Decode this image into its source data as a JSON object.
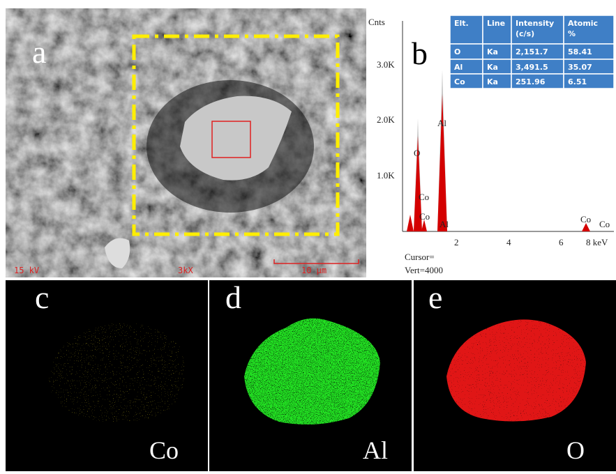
{
  "panel_a": {
    "label": "a",
    "voltage": "15 kV",
    "magnification": "3kX",
    "scale_bar": "10 μm"
  },
  "panel_b": {
    "label": "b",
    "y_axis_title": "Cnts",
    "yticks": [
      "3.0K",
      "2.0K",
      "1.0K"
    ],
    "xticks": [
      "2",
      "4",
      "6",
      "8 keV"
    ],
    "peak_labels": [
      "O",
      "Co",
      "Co",
      "Al",
      "Al",
      "Co",
      "Co"
    ],
    "cursor": "Cursor=",
    "vert": "Vert=4000",
    "table": {
      "header": [
        "Elt.",
        "Line",
        "Intensity (c/s)",
        "Atomic %"
      ],
      "rows": [
        [
          "O",
          "Ka",
          "2,151.7",
          "58.41"
        ],
        [
          "Al",
          "Ka",
          "3,491.5",
          "35.07"
        ],
        [
          "Co",
          "Ka",
          "251.96",
          "6.51"
        ]
      ]
    }
  },
  "panel_c": {
    "label": "c",
    "element": "Co"
  },
  "panel_d": {
    "label": "d",
    "element": "Al"
  },
  "panel_e": {
    "label": "e",
    "element": "O"
  }
}
